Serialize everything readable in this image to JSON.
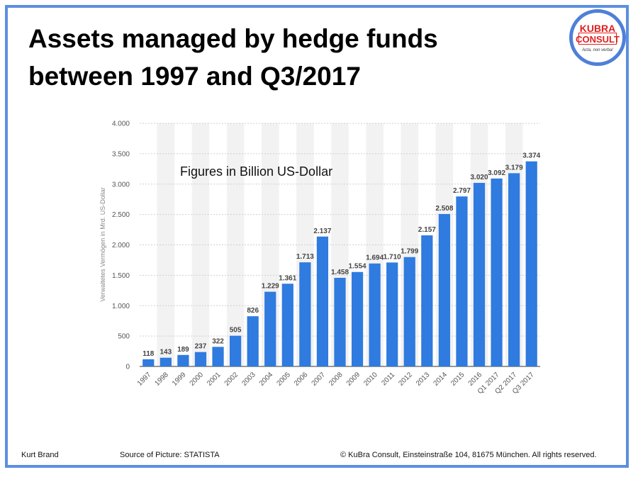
{
  "title_lines": [
    "Assets managed by hedge funds",
    "between 1997 and Q3/2017"
  ],
  "logo": {
    "line1": "KUBRA",
    "line2": "CONSULT",
    "slogan": "Acta, non verba!"
  },
  "annotation": "Figures in Billion US-Dollar",
  "footer": {
    "author": "Kurt Brand",
    "source": "Source of Picture: STATISTA",
    "copyright": "© KuBra Consult, Einsteinstraße 104, 81675 München. All rights reserved."
  },
  "colors": {
    "frame": "#5b8fe0",
    "bar": "#2f7bdf",
    "band": "#f2f2f2",
    "grid": "#cfcfcf",
    "logo_red": "#e02020"
  },
  "chart_data": {
    "type": "bar",
    "title": "",
    "xlabel": "",
    "ylabel": "Verwaltetes Vermögen in Mrd. US-Dollar",
    "ylim": [
      0,
      4000
    ],
    "yticks": [
      0,
      500,
      1000,
      1500,
      2000,
      2500,
      3000,
      3500,
      4000
    ],
    "ytick_labels": [
      "0",
      "500",
      "1.000",
      "1.500",
      "2.000",
      "2.500",
      "3.000",
      "3.500",
      "4.000"
    ],
    "categories": [
      "1997",
      "1998",
      "1999",
      "2000",
      "2001",
      "2002",
      "2003",
      "2004",
      "2005",
      "2006",
      "2007",
      "2008",
      "2009",
      "2010",
      "2011",
      "2012",
      "2013",
      "2014",
      "2015",
      "2016",
      "Q1 2017",
      "Q2 2017",
      "Q3 2017"
    ],
    "values": [
      118,
      143,
      189,
      237,
      322,
      505,
      826,
      1229,
      1361,
      1713,
      2137,
      1458,
      1554,
      1694,
      1710,
      1799,
      2157,
      2508,
      2797,
      3020,
      3092,
      3179,
      3374
    ],
    "value_labels": [
      "118",
      "143",
      "189",
      "237",
      "322",
      "505",
      "826",
      "1.229",
      "1.361",
      "1.713",
      "2.137",
      "1.458",
      "1.554",
      "1.694",
      "1.710",
      "1.799",
      "2.157",
      "2.508",
      "2.797",
      "3.020",
      "3.092",
      "3.179",
      "3.374"
    ],
    "grid": true,
    "legend": "none"
  }
}
